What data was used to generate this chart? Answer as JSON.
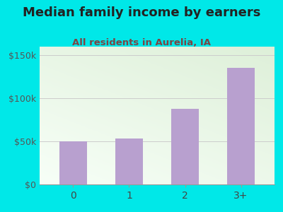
{
  "categories": [
    "0",
    "1",
    "2",
    "3+"
  ],
  "values": [
    50000,
    53000,
    88000,
    135000
  ],
  "bar_color": "#b8a0cf",
  "title": "Median family income by earners",
  "subtitle": "All residents in Aurelia, IA",
  "title_color": "#222222",
  "subtitle_color": "#7a4545",
  "background_outer": "#00e8e8",
  "background_inner_top": "#dff0d8",
  "background_inner_bottom": "#f8fff8",
  "ylim": [
    0,
    160000
  ],
  "yticks": [
    0,
    50000,
    100000,
    150000
  ],
  "ytick_labels": [
    "$0",
    "$50k",
    "$100k",
    "$150k"
  ],
  "title_fontsize": 13,
  "subtitle_fontsize": 9.5,
  "tick_fontsize": 9,
  "xtick_fontsize": 10
}
